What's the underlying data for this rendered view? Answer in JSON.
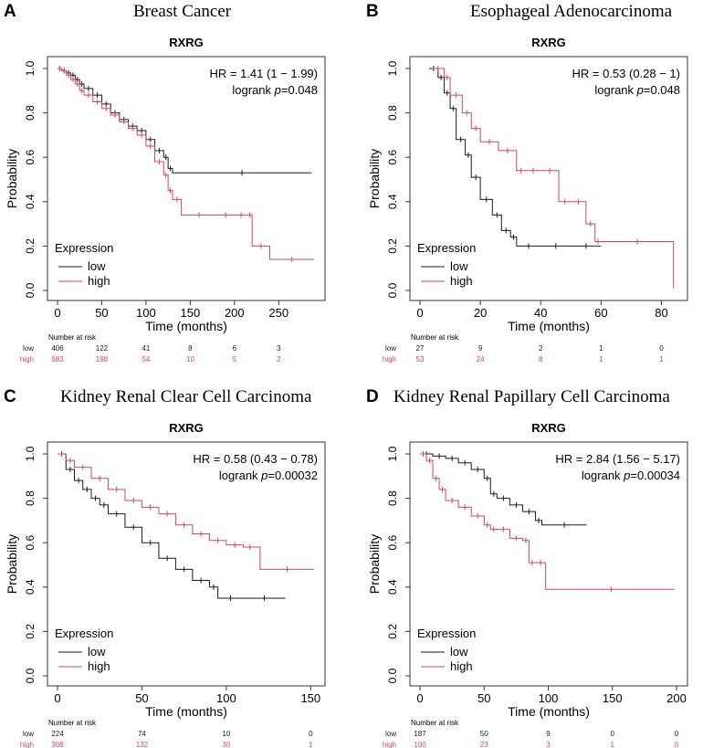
{
  "colors": {
    "low": "#1a1a1a",
    "high": "#d9435a",
    "axis": "#333333"
  },
  "common": {
    "gene": "RXRG",
    "ylabel": "Probability",
    "xlabel": "Time (months)",
    "legend_title": "Expression",
    "legend_low": "low",
    "legend_high": "high",
    "risk_title": "Number at risk",
    "logrank_label": "logrank",
    "p_prefix": "p",
    "y_ticks": [
      "0.0",
      "0.2",
      "0.4",
      "0.6",
      "0.8",
      "1.0"
    ]
  },
  "chart_data": [
    {
      "type": "line",
      "letter": "A",
      "title": "Breast Cancer",
      "hr_text": "HR = 1.41 (1 − 1.99)",
      "p_text": "=0.048",
      "xlim": [
        0,
        290
      ],
      "ylim": [
        0,
        1
      ],
      "x_ticks": [
        0,
        50,
        100,
        150,
        200,
        250
      ],
      "series": [
        {
          "name": "low",
          "x": [
            0,
            5,
            10,
            15,
            20,
            25,
            30,
            40,
            50,
            60,
            70,
            80,
            90,
            100,
            110,
            120,
            125,
            130,
            287
          ],
          "y": [
            1.0,
            0.99,
            0.98,
            0.97,
            0.95,
            0.93,
            0.91,
            0.88,
            0.84,
            0.8,
            0.77,
            0.74,
            0.72,
            0.68,
            0.63,
            0.6,
            0.55,
            0.53,
            0.53
          ]
        },
        {
          "name": "high",
          "x": [
            0,
            5,
            10,
            15,
            20,
            25,
            30,
            40,
            50,
            60,
            70,
            80,
            90,
            100,
            110,
            120,
            125,
            130,
            140,
            180,
            200,
            215,
            220,
            240,
            290
          ],
          "y": [
            1.0,
            0.99,
            0.97,
            0.95,
            0.93,
            0.9,
            0.88,
            0.85,
            0.82,
            0.79,
            0.76,
            0.73,
            0.7,
            0.65,
            0.58,
            0.52,
            0.45,
            0.41,
            0.34,
            0.34,
            0.34,
            0.34,
            0.2,
            0.14,
            0.14
          ]
        }
      ],
      "risk": {
        "times": [
          0,
          50,
          100,
          150,
          200,
          250
        ],
        "low": [
          "406",
          "122",
          "41",
          "8",
          "6",
          "3"
        ],
        "high": [
          "683",
          "198",
          "54",
          "10",
          "5",
          "2"
        ]
      }
    },
    {
      "type": "line",
      "letter": "B",
      "title": "Esophageal Adenocarcinoma",
      "hr_text": "HR = 0.53 (0.28 − 1)",
      "p_text": "=0.048",
      "xlim": [
        0,
        85
      ],
      "ylim": [
        0,
        1
      ],
      "x_ticks": [
        0,
        20,
        40,
        60,
        80
      ],
      "series": [
        {
          "name": "low",
          "x": [
            3,
            6,
            8,
            10,
            12,
            15,
            17,
            20,
            24,
            27,
            30,
            32,
            40,
            50,
            60
          ],
          "y": [
            1.0,
            0.96,
            0.89,
            0.82,
            0.68,
            0.61,
            0.51,
            0.41,
            0.34,
            0.27,
            0.24,
            0.2,
            0.2,
            0.2,
            0.2
          ]
        },
        {
          "name": "high",
          "x": [
            4,
            8,
            10,
            14,
            17,
            20,
            26,
            32,
            35,
            40,
            46,
            50,
            55,
            58,
            60,
            84,
            84
          ],
          "y": [
            1.0,
            0.96,
            0.88,
            0.8,
            0.73,
            0.67,
            0.63,
            0.54,
            0.54,
            0.54,
            0.4,
            0.4,
            0.3,
            0.22,
            0.22,
            0.22,
            0.01
          ]
        }
      ],
      "risk": {
        "times": [
          0,
          20,
          40,
          60,
          80
        ],
        "low": [
          "27",
          "9",
          "2",
          "1",
          "0"
        ],
        "high": [
          "53",
          "24",
          "8",
          "1",
          "1"
        ]
      }
    },
    {
      "type": "line",
      "letter": "C",
      "title": "Kidney Renal Clear Cell Carcinoma",
      "hr_text": "HR = 0.58 (0.43 − 0.78)",
      "p_text": "=0.00032",
      "xlim": [
        0,
        152
      ],
      "ylim": [
        0,
        1
      ],
      "x_ticks": [
        0,
        50,
        100,
        150
      ],
      "series": [
        {
          "name": "low",
          "x": [
            0,
            5,
            10,
            15,
            20,
            25,
            30,
            40,
            50,
            60,
            70,
            80,
            90,
            95,
            110,
            135
          ],
          "y": [
            1.0,
            0.93,
            0.88,
            0.84,
            0.8,
            0.77,
            0.73,
            0.67,
            0.6,
            0.53,
            0.48,
            0.43,
            0.4,
            0.35,
            0.35,
            0.35
          ]
        },
        {
          "name": "high",
          "x": [
            0,
            5,
            10,
            20,
            30,
            40,
            50,
            60,
            70,
            80,
            90,
            100,
            110,
            118,
            120,
            152
          ],
          "y": [
            1.0,
            0.97,
            0.94,
            0.89,
            0.84,
            0.79,
            0.76,
            0.73,
            0.68,
            0.64,
            0.61,
            0.59,
            0.58,
            0.58,
            0.48,
            0.48
          ]
        }
      ],
      "risk": {
        "times": [
          0,
          50,
          100,
          150
        ],
        "low": [
          "224",
          "74",
          "10",
          "0"
        ],
        "high": [
          "306",
          "132",
          "30",
          "1"
        ]
      }
    },
    {
      "type": "line",
      "letter": "D",
      "title": "Kidney Renal Papillary Cell Carcinoma",
      "hr_text": "HR = 2.84 (1.56 − 5.17)",
      "p_text": "=0.00034",
      "xlim": [
        0,
        200
      ],
      "ylim": [
        0,
        1
      ],
      "x_ticks": [
        0,
        50,
        100,
        150,
        200
      ],
      "series": [
        {
          "name": "low",
          "x": [
            0,
            10,
            20,
            30,
            40,
            50,
            55,
            60,
            70,
            80,
            90,
            95,
            130
          ],
          "y": [
            1.0,
            0.99,
            0.98,
            0.96,
            0.93,
            0.89,
            0.82,
            0.8,
            0.77,
            0.74,
            0.7,
            0.68,
            0.68
          ]
        },
        {
          "name": "high",
          "x": [
            0,
            5,
            10,
            15,
            20,
            30,
            40,
            50,
            55,
            60,
            70,
            80,
            85,
            90,
            98,
            100,
            198
          ],
          "y": [
            1.0,
            0.97,
            0.89,
            0.84,
            0.79,
            0.76,
            0.72,
            0.68,
            0.66,
            0.66,
            0.62,
            0.61,
            0.51,
            0.51,
            0.39,
            0.39,
            0.39
          ]
        }
      ],
      "risk": {
        "times": [
          0,
          50,
          100,
          150,
          200
        ],
        "low": [
          "187",
          "50",
          "9",
          "0",
          "0"
        ],
        "high": [
          "100",
          "23",
          "3",
          "1",
          "0"
        ]
      }
    }
  ]
}
